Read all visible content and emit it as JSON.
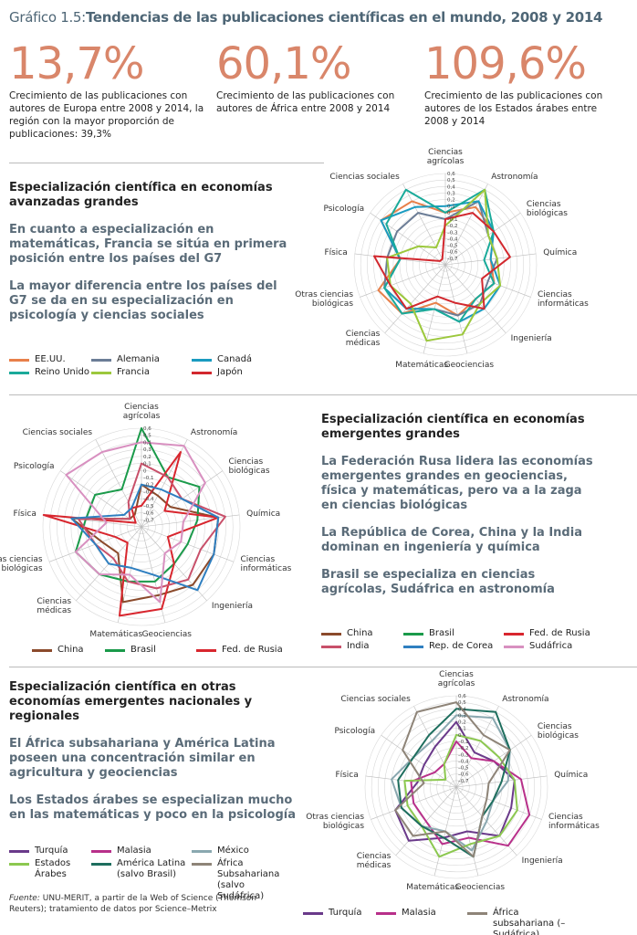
{
  "header": {
    "label": "Gráfico 1.5:",
    "title": "Tendencias de las publicaciones científicas en el mundo, 2008 y 2014"
  },
  "stats": [
    {
      "value": "13,7%",
      "text": "Crecimiento de las publicaciones con autores de Europa entre 2008 y 2014, la región con la mayor proporción de publicaciones: 39,3%"
    },
    {
      "value": "60,1%",
      "text": "Crecimiento de las publicaciones con autores de África entre 2008 y 2014"
    },
    {
      "value": "109,6%",
      "text": "Crecimiento de las publicaciones con autores de los Estados árabes entre 2008 y 2014"
    }
  ],
  "sections": [
    {
      "title": "Especialización científica en economías avanzadas grandes",
      "highlights": [
        "En cuanto a especialización en matemáticas, Francia se sitúa en primera posición entre los países del G7",
        "La mayor diferencia entre los países del G7 se da en su especialización en psicología y ciencias sociales"
      ]
    },
    {
      "title": "Especialización científica en economías emergentes grandes",
      "highlights": [
        "La Federación Rusa lidera las economías emergentes grandes en geociencias, física y matemáticas, pero va a la zaga en ciencias biológicas",
        "La República de Corea, China y la India dominan en ingeniería y química",
        "Brasil se especializa en ciencias agrícolas, Sudáfrica en astronomía"
      ]
    },
    {
      "title": "Especialización científica en otras economías emergentes nacionales y regionales",
      "highlights": [
        "El África subsahariana y América Latina poseen una concentración similar en agricultura y geociencias",
        "Los Estados árabes se especializan mucho en las matemáticas y poco en la psicología"
      ]
    }
  ],
  "chart_data": [
    {
      "type": "radar",
      "categories": [
        "Ciencias agrícolas",
        "Astronomía",
        "Ciencias biológicas",
        "Química",
        "Ciencias informáticas",
        "Ingeniería",
        "Geociencias",
        "Matemáticas",
        "Ciencias médicas",
        "Otras ciencias biológicas",
        "Física",
        "Psicología",
        "Ciencias sociales"
      ],
      "ylim": [
        -0.8,
        0.6
      ],
      "yticks": [
        {
          "value": 0.6,
          "label": "0,6"
        },
        {
          "value": 0.5,
          "label": "0,5"
        },
        {
          "value": 0.4,
          "label": "0,4"
        },
        {
          "value": 0.3,
          "label": "0,3"
        },
        {
          "value": 0.2,
          "label": "0,2"
        },
        {
          "value": 0.1,
          "label": "0,1"
        },
        0,
        {
          "value": -0.1,
          "label": "–0,1"
        },
        {
          "value": -0.2,
          "label": "–0,2"
        },
        {
          "value": -0.3,
          "label": "–0,3"
        },
        {
          "value": -0.4,
          "label": "–0,4"
        },
        {
          "value": -0.5,
          "label": "–0,5"
        },
        {
          "value": -0.6,
          "label": "–0,6"
        },
        {
          "value": -0.7,
          "label": "–0,7"
        }
      ],
      "series": [
        {
          "name": "EE.UU.",
          "color": "#e8804a",
          "values": [
            0.0,
            0.2,
            0.1,
            -0.1,
            0.0,
            -0.1,
            0.0,
            -0.2,
            0.2,
            0.3,
            -0.1,
            0.4,
            0.3
          ]
        },
        {
          "name": "Alemania",
          "color": "#6b7d96",
          "values": [
            -0.1,
            0.3,
            0.0,
            0.0,
            -0.1,
            0.0,
            0.0,
            -0.1,
            0.1,
            0.2,
            0.1,
            0.1,
            0.1
          ]
        },
        {
          "name": "Canadá",
          "color": "#1a9bc0",
          "values": [
            0.1,
            0.3,
            0.1,
            -0.1,
            0.1,
            0.1,
            0.1,
            -0.1,
            0.1,
            0.2,
            -0.1,
            0.4,
            0.2
          ]
        },
        {
          "name": "Reino Unido",
          "color": "#1aaa9a",
          "values": [
            0.0,
            0.5,
            0.1,
            -0.2,
            0.0,
            -0.1,
            0.1,
            -0.1,
            0.2,
            0.2,
            -0.1,
            0.3,
            0.5
          ]
        },
        {
          "name": "Francia",
          "color": "#9cc83c",
          "values": [
            -0.2,
            0.5,
            0.0,
            0.0,
            0.1,
            0.0,
            0.3,
            0.4,
            0.0,
            0.1,
            0.1,
            -0.3,
            -0.5
          ]
        },
        {
          "name": "Japón",
          "color": "#d2282e",
          "values": [
            -0.1,
            0.1,
            0.1,
            0.2,
            -0.2,
            0.1,
            -0.2,
            -0.3,
            0.1,
            0.1,
            0.3,
            -0.7,
            -0.7
          ]
        }
      ]
    },
    {
      "type": "radar",
      "categories": [
        "Ciencias agrícolas",
        "Astronomía",
        "Ciencias biológicas",
        "Química",
        "Ciencias informáticas",
        "Ingeniería",
        "Geociencias",
        "Matemáticas",
        "Ciencias médicas",
        "Otras ciencias biológicas",
        "Física",
        "Psicología",
        "Ciencias sociales"
      ],
      "ylim": [
        -0.8,
        0.6
      ],
      "yticks": [
        {
          "value": 0.6,
          "label": "0,6"
        },
        {
          "value": 0.5,
          "label": "0,5"
        },
        {
          "value": 0.4,
          "label": "0,4"
        },
        {
          "value": 0.3,
          "label": "0,3"
        },
        {
          "value": 0.2,
          "label": "0,2"
        },
        {
          "value": 0.1,
          "label": "0,1"
        },
        0,
        {
          "value": -0.1,
          "label": "–0,1"
        },
        {
          "value": -0.2,
          "label": "–0,2"
        },
        {
          "value": -0.3,
          "label": "–0,3"
        },
        {
          "value": -0.4,
          "label": "–0,4"
        },
        {
          "value": -0.5,
          "label": "–0,5"
        },
        {
          "value": -0.6,
          "label": "–0,6"
        },
        {
          "value": -0.7,
          "label": "–0,7"
        }
      ],
      "series": [
        {
          "name": "China",
          "color": "#8b4a2b",
          "values": [
            -0.2,
            -0.3,
            -0.3,
            0.3,
            0.3,
            0.3,
            0.2,
            0.3,
            -0.3,
            -0.2,
            0.2,
            -0.6,
            -0.6
          ]
        },
        {
          "name": "Brasil",
          "color": "#1a9a4a",
          "values": [
            0.6,
            0.0,
            0.2,
            0.0,
            -0.1,
            -0.1,
            0.0,
            0.0,
            0.1,
            0.2,
            0.0,
            0.0,
            -0.2
          ]
        },
        {
          "name": "Fed. de Rusia",
          "color": "#d8262e",
          "values": [
            -0.5,
            0.4,
            -0.4,
            0.3,
            -0.4,
            -0.1,
            0.4,
            0.5,
            -0.5,
            -0.4,
            0.6,
            -0.7,
            -0.5
          ]
        },
        {
          "name": "India",
          "color": "#c8506a",
          "values": [
            0.1,
            0.0,
            -0.1,
            0.4,
            0.1,
            0.2,
            0.1,
            0.0,
            -0.2,
            -0.1,
            0.1,
            -0.6,
            -0.4
          ]
        },
        {
          "name": "Rep. de Corea",
          "color": "#2f7fc0",
          "values": [
            -0.2,
            -0.2,
            -0.1,
            0.3,
            0.3,
            0.4,
            -0.1,
            -0.2,
            -0.1,
            -0.1,
            0.2,
            -0.5,
            -0.5
          ]
        },
        {
          "name": "Sudáfrica",
          "color": "#d890c0",
          "values": [
            0.4,
            0.5,
            0.3,
            -0.2,
            -0.2,
            -0.3,
            0.3,
            -0.1,
            0.1,
            0.2,
            -0.3,
            0.5,
            0.4
          ]
        }
      ]
    },
    {
      "type": "radar",
      "categories": [
        "Ciencias agrícolas",
        "Astronomía",
        "Ciencias biológicas",
        "Química",
        "Ciencias informáticas",
        "Ingeniería",
        "Geociencias",
        "Matemáticas",
        "Ciencias médicas",
        "Otras ciencias biológicas",
        "Física",
        "Psicología",
        "Ciencias sociales"
      ],
      "ylim": [
        -0.8,
        0.6
      ],
      "yticks": [
        {
          "value": 0.6,
          "label": "0,6"
        },
        {
          "value": 0.5,
          "label": "0,5"
        },
        {
          "value": 0.4,
          "label": "0,4"
        },
        {
          "value": 0.3,
          "label": "0,3"
        },
        {
          "value": 0.2,
          "label": "0,2"
        },
        {
          "value": 0.1,
          "label": "0,1"
        },
        0,
        {
          "value": -0.1,
          "label": "–0,1"
        },
        {
          "value": -0.2,
          "label": "–0,2"
        },
        {
          "value": -0.3,
          "label": "–0,3"
        },
        {
          "value": -0.4,
          "label": "–0,4"
        },
        {
          "value": -0.5,
          "label": "–0,5"
        },
        {
          "value": -0.6,
          "label": "–0,6"
        },
        {
          "value": -0.7,
          "label": "–0,7"
        }
      ],
      "alt_legend_label": "África subsahariana (–Sudáfrica)",
      "series": [
        {
          "name": "Turquía",
          "color": "#6a3a8a",
          "values": [
            0.2,
            -0.2,
            -0.1,
            0.1,
            0.1,
            0.2,
            -0.1,
            0.0,
            0.3,
            0.2,
            -0.2,
            -0.2,
            -0.1
          ]
        },
        {
          "name": "Malasia",
          "color": "#b8308a",
          "values": [
            -0.1,
            -0.3,
            -0.1,
            0.2,
            0.4,
            0.4,
            0.0,
            0.1,
            -0.1,
            -0.1,
            -0.1,
            -0.4,
            -0.4
          ]
        },
        {
          "name": "México",
          "color": "#8aa8b0",
          "values": [
            0.3,
            0.4,
            0.2,
            0.0,
            -0.2,
            -0.1,
            0.2,
            -0.1,
            0.0,
            0.1,
            0.2,
            0.0,
            0.0
          ]
        },
        {
          "name": "Estados Árabes",
          "color": "#8cc850",
          "values": [
            0.0,
            0.0,
            0.0,
            0.1,
            0.2,
            0.2,
            0.1,
            0.3,
            0.0,
            0.0,
            0.0,
            -0.6,
            -0.4
          ]
        },
        {
          "name": "América Latina (salvo Brasil)",
          "color": "#1e6e5e",
          "values": [
            0.4,
            0.5,
            0.2,
            -0.1,
            -0.2,
            -0.2,
            0.3,
            0.0,
            0.0,
            0.1,
            0.1,
            0.0,
            0.1
          ]
        },
        {
          "name": "África Subsahariana (salvo Sudáfrica)",
          "color": "#8e8478",
          "values": [
            0.5,
            0.1,
            0.2,
            -0.3,
            -0.3,
            -0.2,
            0.3,
            -0.1,
            0.2,
            0.2,
            -0.3,
            0.2,
            0.5
          ]
        }
      ]
    }
  ],
  "footnote": {
    "label": "Fuente:",
    "text": "UNU-MERIT, a partir de la Web of Science (Thomson Reuters); tratamiento de datos por Science–Metrix"
  }
}
